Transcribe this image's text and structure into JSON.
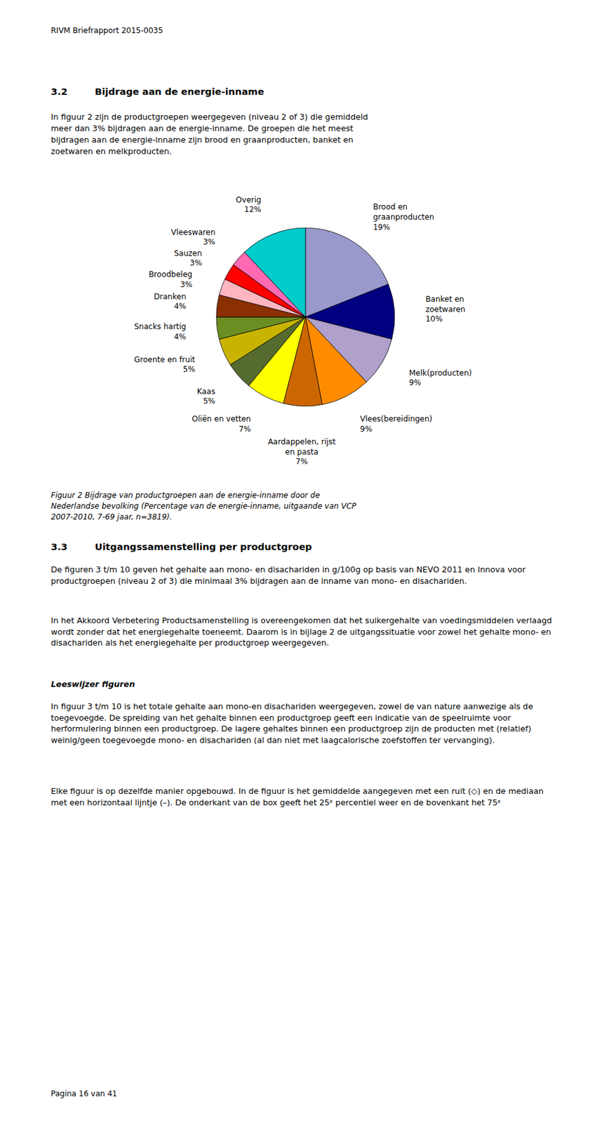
{
  "chart_data": {
    "type": "pie",
    "categories": [
      "Brood en\ngraanproducten",
      "Banket en\nzoetwaren",
      "Melk(producten)",
      "Vlees(bereidingen)",
      "Aardappelen, rijst\nen pasta",
      "Oliën en vetten",
      "Kaas",
      "Groente en fruit",
      "Snacks hartig",
      "Dranken",
      "Broodbeleg",
      "Sauzen",
      "Vleeswaren",
      "Overig"
    ],
    "values": [
      19,
      10,
      9,
      9,
      7,
      7,
      5,
      5,
      4,
      4,
      3,
      3,
      3,
      12
    ],
    "value_labels": [
      "19%",
      "10%",
      "9%",
      "9%",
      "7%",
      "7%",
      "5%",
      "5%",
      "4%",
      "4%",
      "3%",
      "3%",
      "3%",
      "12%"
    ],
    "colors": [
      "#9999CC",
      "#000080",
      "#B0A0CC",
      "#FF8C00",
      "#CC6600",
      "#FFFF00",
      "#556B2F",
      "#C8B400",
      "#6B8E23",
      "#8B3000",
      "#FFB6C1",
      "#FF0000",
      "#FF69B4",
      "#00CCCC"
    ],
    "data_labels": true
  },
  "page": {
    "header": "RIVM Briefrapport 2015-0035",
    "sec32_num": "3.2",
    "sec32_title": "Bijdrage aan de energie-inname",
    "sec32_body": "In figuur 2 zijn de productgroepen weergegeven (niveau 2 of 3) die gemiddeld\nmeer dan 3% bijdragen aan de energie-inname. De groepen die het meest\nbijdragen aan de energie-inname zijn brood en graanproducten, banket en\nzoetwaren en melkproducten.",
    "caption": "Figuur 2 Bijdrage van productgroepen aan de energie-inname door de\nNederlandse bevolking (Percentage van de energie-inname, uitgaande van VCP\n2007-2010, 7-69 jaar, n=3819).",
    "sec33_num": "3.3",
    "sec33_title": "Uitgangssamenstelling per productgroep",
    "body_text_1": "De figuren 3 t/m 10 geven het gehalte aan mono- en disachariden in g/100g op basis van NEVO 2011 en Innova voor productgroepen (niveau 2 of 3) die minimaal 3% bijdragen aan de inname van mono- en disachariden.",
    "body_text_2": "In het Akkoord Verbetering Productsamenstelling is overeengekomen dat het suikergehalte van voedingsmiddelen verlaagd wordt zonder dat het energiegehalte toeneemt. Daarom is in bijlage 2 de uitgangssituatie voor zowel het gehalte mono- en disachariden als het energiegehalte per productgroep weergegeven.",
    "leeswijzer_title": "Leeswijzer figuren",
    "body_text_3": "In figuur 3 t/m 10 is het totale gehalte aan mono-en disachariden weergegeven, zowel de van nature aanwezige als de toegevoegde. De spreiding van het gehalte binnen een productgroep geeft een indicatie van de speelruimte voor herformulering binnen een productgroep. De lagere gehaltes binnen een productgroep zijn de producten met (relatief) weinig/geen toegevoegde mono- en disachariden (al dan niet met laagcalorische zoefstoffen ter vervanging).",
    "body_text_4": "Elke figuur is op dezelfde manier opgebouwd. In de figuur is het gemiddelde aangegeven met een ruit (◇) en de mediaan met een horizontaal lijntje (–). De onderkant van de box geeft het 25ᵉ percentiel weer en de bovenkant het 75ᵉ",
    "footer": "Pagina 16 van 41"
  }
}
